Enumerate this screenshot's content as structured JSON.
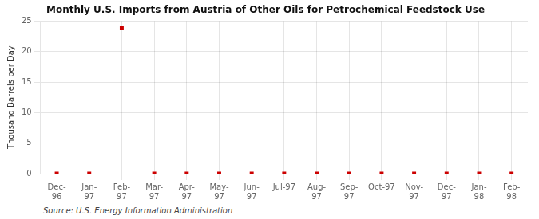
{
  "chart_data": {
    "type": "scatter",
    "title": "Monthly U.S. Imports from Austria of Other Oils for Petrochemical Feedstock Use",
    "y_label": "Thousand Barrels per Day",
    "source": "Source: U.S. Energy Information Administration",
    "categories": [
      "Dec-\n96",
      "Jan-\n97",
      "Feb-\n97",
      "Mar-\n97",
      "Apr-\n97",
      "May-\n97",
      "Jun-\n97",
      "Jul-97",
      "Aug-\n97",
      "Sep-\n97",
      "Oct-97",
      "Nov-\n97",
      "Dec-\n97",
      "Jan-\n98",
      "Feb-\n98"
    ],
    "values": [
      0,
      0,
      23.8,
      0,
      0,
      0,
      0,
      0,
      0,
      0,
      0,
      0,
      0,
      0,
      0
    ],
    "color": "#cc0000",
    "marker": "square",
    "ylim": [
      0,
      25
    ],
    "yticks": [
      0,
      5,
      10,
      15,
      20,
      25
    ],
    "grid": true
  }
}
